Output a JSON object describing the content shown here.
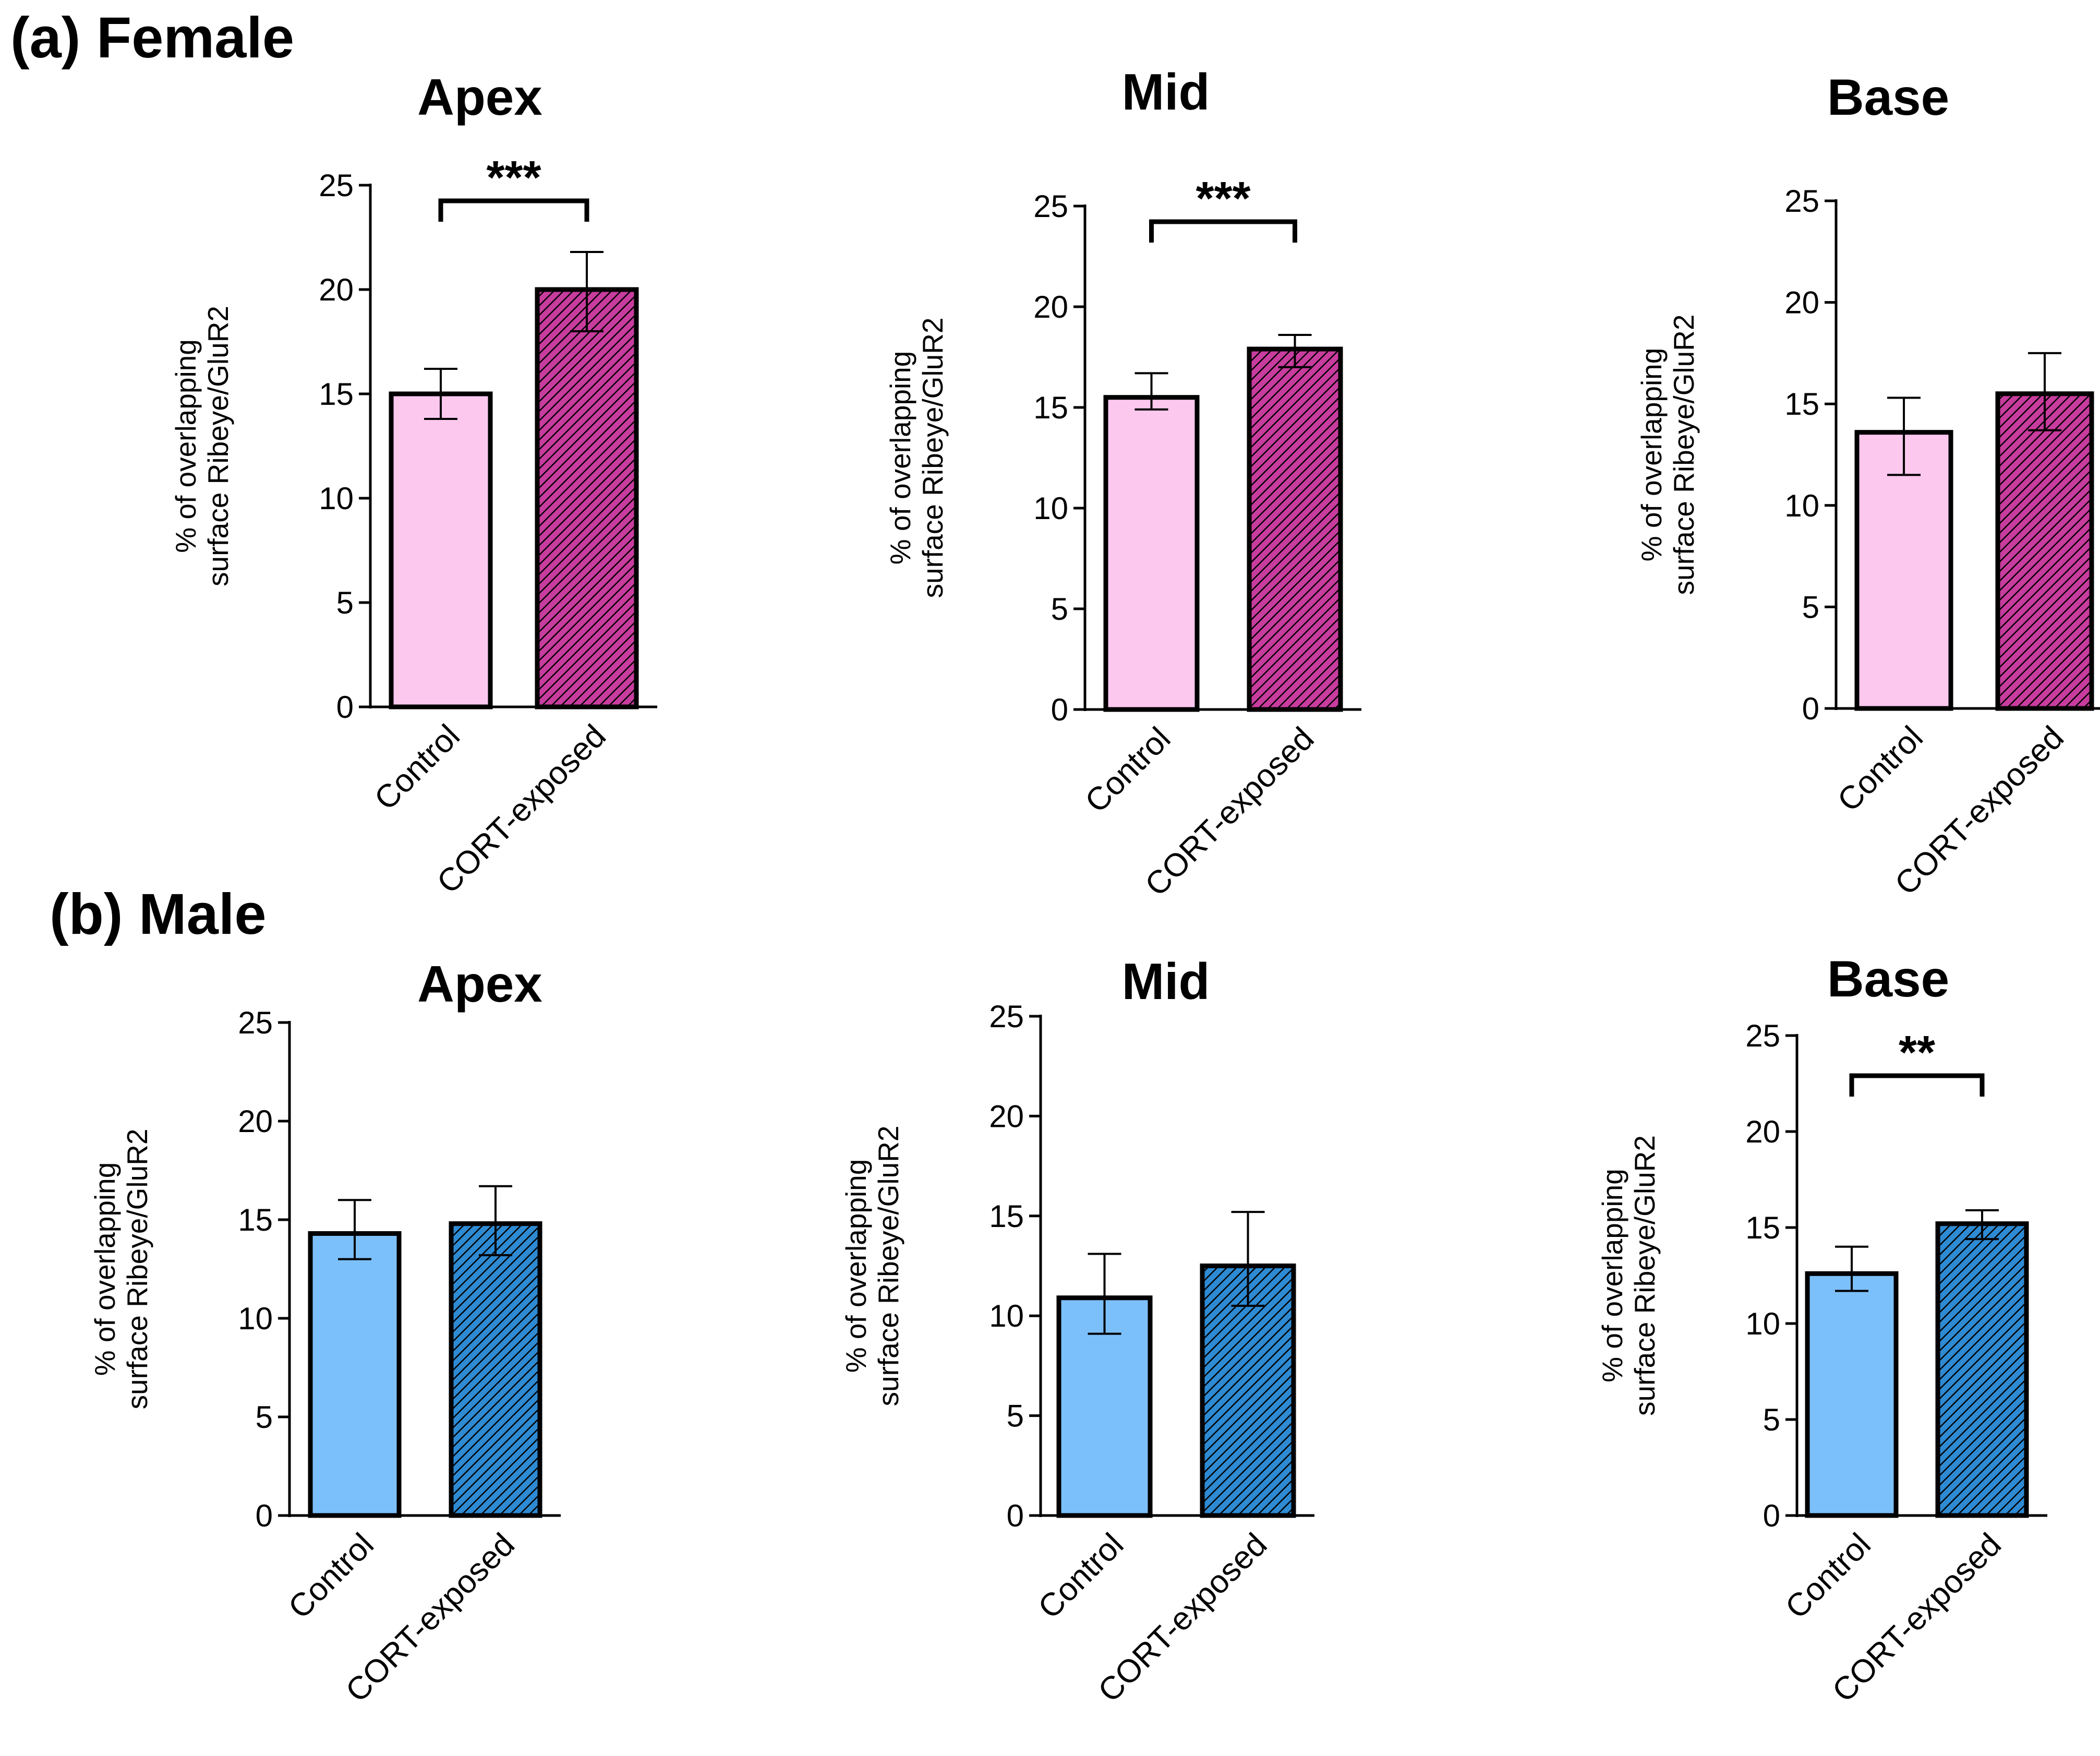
{
  "figure": {
    "sections": [
      "(a) Female",
      "(b) Male"
    ]
  },
  "chart_data": [
    {
      "type": "bar",
      "section": "(a) Female",
      "title": "Apex",
      "categories": [
        "Control",
        "CORT-exposed"
      ],
      "values": [
        15.0,
        20.0
      ],
      "error_low": [
        13.8,
        18.0
      ],
      "error_high": [
        16.2,
        21.8
      ],
      "xlabel": "",
      "ylabel": "% of overlapping surface Ribeye/GluR2",
      "ylim": [
        0,
        25
      ],
      "yticks": [
        0,
        5,
        10,
        15,
        20,
        25
      ],
      "significance": "***",
      "colors": [
        "#fcc8ee",
        "#c83c9e"
      ],
      "hatched": [
        false,
        true
      ]
    },
    {
      "type": "bar",
      "section": "(a) Female",
      "title": "Mid",
      "categories": [
        "Control",
        "CORT-exposed"
      ],
      "values": [
        15.5,
        17.9
      ],
      "error_low": [
        14.9,
        17.0
      ],
      "error_high": [
        16.7,
        18.6
      ],
      "xlabel": "",
      "ylabel": "% of overlapping surface Ribeye/GluR2",
      "ylim": [
        0,
        25
      ],
      "yticks": [
        0,
        5,
        10,
        15,
        20,
        25
      ],
      "significance": "***",
      "colors": [
        "#fcc8ee",
        "#c83c9e"
      ],
      "hatched": [
        false,
        true
      ]
    },
    {
      "type": "bar",
      "section": "(a) Female",
      "title": "Base",
      "categories": [
        "Control",
        "CORT-exposed"
      ],
      "values": [
        13.6,
        15.5
      ],
      "error_low": [
        11.5,
        13.7
      ],
      "error_high": [
        15.3,
        17.5
      ],
      "xlabel": "",
      "ylabel": "% of overlapping surface Ribeye/GluR2",
      "ylim": [
        0,
        25
      ],
      "yticks": [
        0,
        5,
        10,
        15,
        20,
        25
      ],
      "significance": "",
      "colors": [
        "#fcc8ee",
        "#c83c9e"
      ],
      "hatched": [
        false,
        true
      ]
    },
    {
      "type": "bar",
      "section": "(b) Male",
      "title": "Apex",
      "categories": [
        "Control",
        "CORT-exposed"
      ],
      "values": [
        14.3,
        14.8
      ],
      "error_low": [
        13.0,
        13.2
      ],
      "error_high": [
        16.0,
        16.7
      ],
      "xlabel": "",
      "ylabel": "% of overlapping surface Ribeye/GluR2",
      "ylim": [
        0,
        25
      ],
      "yticks": [
        0,
        5,
        10,
        15,
        20,
        25
      ],
      "significance": "",
      "colors": [
        "#7cc0fb",
        "#2e8ad2"
      ],
      "hatched": [
        false,
        true
      ]
    },
    {
      "type": "bar",
      "section": "(b) Male",
      "title": "Mid",
      "categories": [
        "Control",
        "CORT-exposed"
      ],
      "values": [
        10.9,
        12.5
      ],
      "error_low": [
        9.1,
        10.5
      ],
      "error_high": [
        13.1,
        15.2
      ],
      "xlabel": "",
      "ylabel": "% of overlapping surface Ribeye/GluR2",
      "ylim": [
        0,
        25
      ],
      "yticks": [
        0,
        5,
        10,
        15,
        20,
        25
      ],
      "significance": "",
      "colors": [
        "#7cc0fb",
        "#2e8ad2"
      ],
      "hatched": [
        false,
        true
      ]
    },
    {
      "type": "bar",
      "section": "(b) Male",
      "title": "Base",
      "categories": [
        "Control",
        "CORT-exposed"
      ],
      "values": [
        12.6,
        15.2
      ],
      "error_low": [
        11.7,
        14.4
      ],
      "error_high": [
        14.0,
        15.9
      ],
      "xlabel": "",
      "ylabel": "% of overlapping surface Ribeye/GluR2",
      "ylim": [
        0,
        25
      ],
      "yticks": [
        0,
        5,
        10,
        15,
        20,
        25
      ],
      "significance": "**",
      "colors": [
        "#7cc0fb",
        "#2e8ad2"
      ],
      "hatched": [
        false,
        true
      ]
    }
  ]
}
